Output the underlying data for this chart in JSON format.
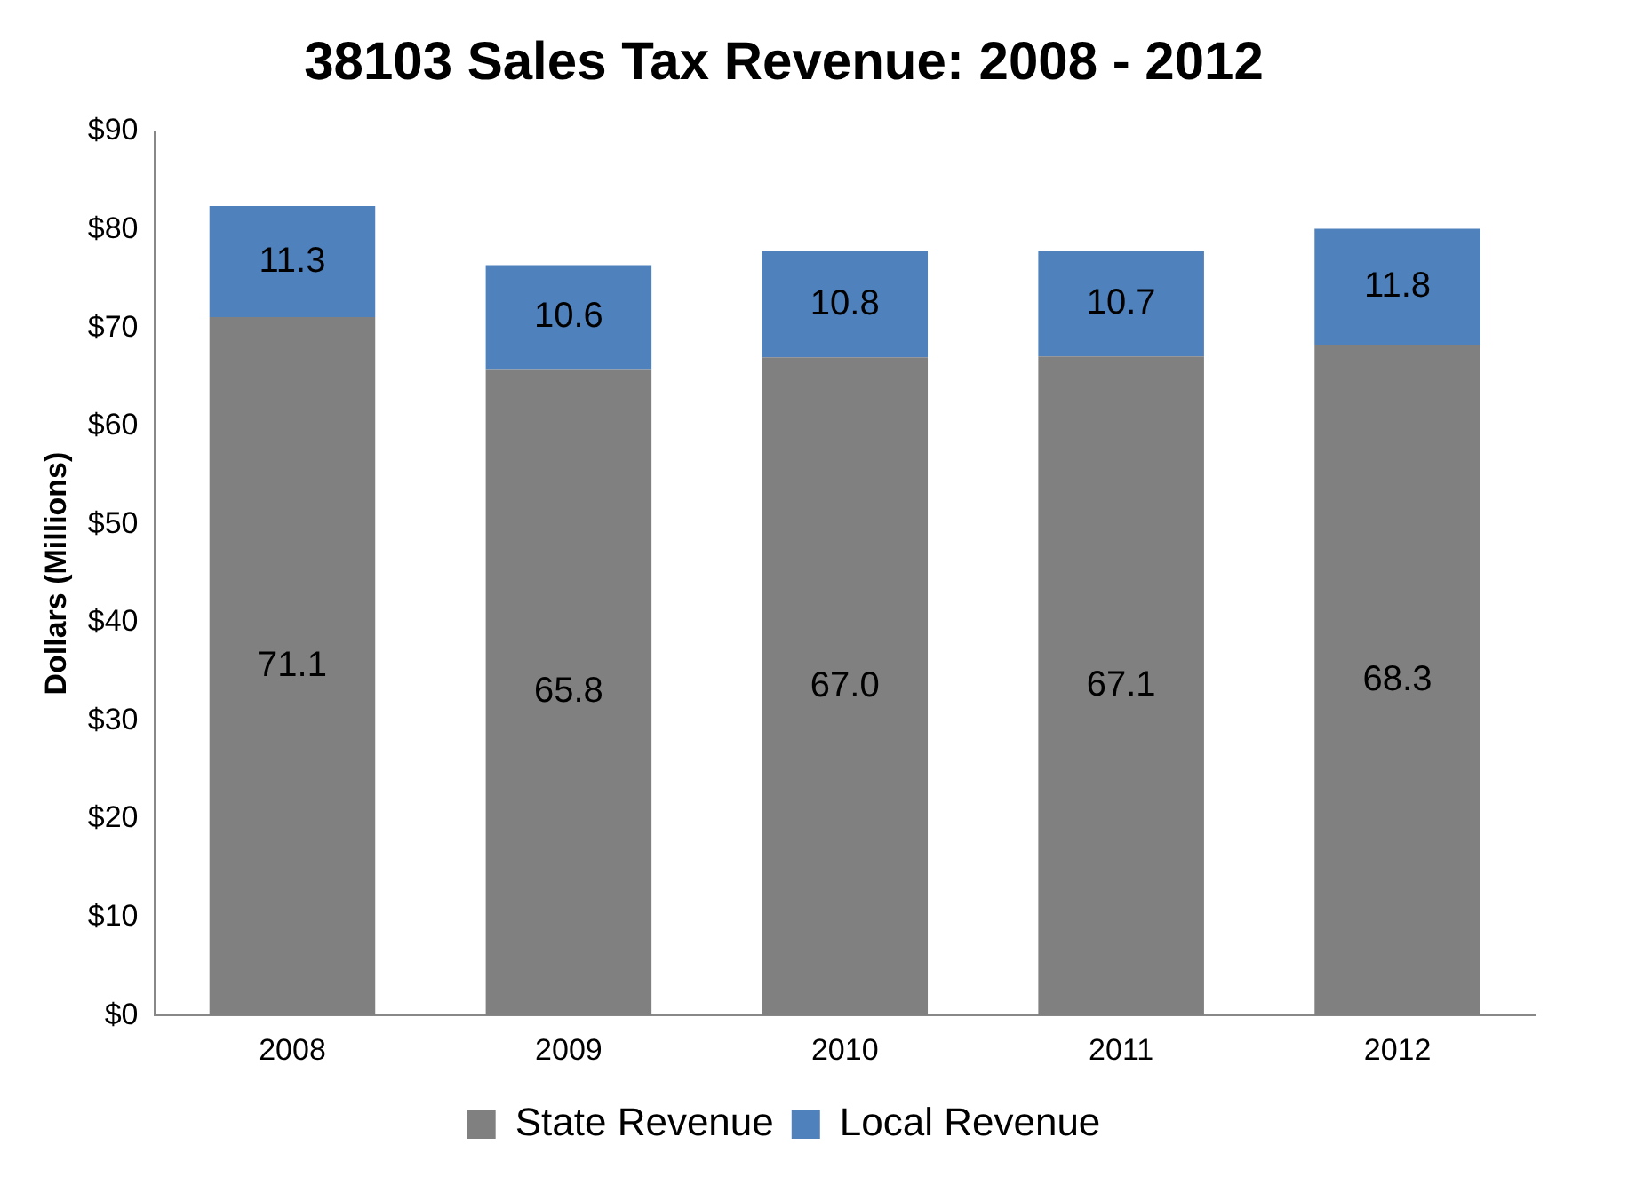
{
  "chart_data": {
    "type": "bar",
    "title": "38103 Sales Tax Revenue: 2008 - 2012",
    "ylabel": "Dollars (Millions)",
    "categories": [
      "2008",
      "2009",
      "2010",
      "2011",
      "2012"
    ],
    "series": [
      {
        "name": "State Revenue",
        "color": "#808080",
        "values": [
          71.1,
          65.8,
          67.0,
          67.1,
          68.3
        ],
        "value_labels": [
          "71.1",
          "65.8",
          "67.0",
          "67.1",
          "68.3"
        ]
      },
      {
        "name": "Local Revenue",
        "color": "#4f81bd",
        "values": [
          11.3,
          10.6,
          10.8,
          10.7,
          11.8
        ],
        "value_labels": [
          "11.3",
          "10.6",
          "10.8",
          "10.7",
          "11.8"
        ]
      }
    ],
    "stacked": true,
    "ylim": [
      0,
      90
    ],
    "yticks": [
      {
        "value": 0,
        "label": "$0"
      },
      {
        "value": 10,
        "label": "$10"
      },
      {
        "value": 20,
        "label": "$20"
      },
      {
        "value": 30,
        "label": "$30"
      },
      {
        "value": 40,
        "label": "$40"
      },
      {
        "value": 50,
        "label": "$50"
      },
      {
        "value": 60,
        "label": "$60"
      },
      {
        "value": 70,
        "label": "$70"
      },
      {
        "value": 80,
        "label": "$80"
      },
      {
        "value": 90,
        "label": "$90"
      }
    ],
    "grid": false,
    "legend": "bottom"
  }
}
